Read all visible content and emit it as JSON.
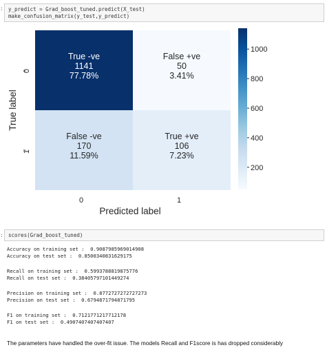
{
  "cell1": {
    "prompt": ":",
    "lines": [
      "y_predict = Grad_boost_tuned.predict(X_test)",
      "make_confusion_matrix(y_test,y_predict)"
    ]
  },
  "chart_data": {
    "type": "heatmap",
    "xlabel": "Predicted label",
    "ylabel": "True label",
    "x_ticks": [
      "0",
      "1"
    ],
    "y_ticks": [
      "0",
      "1"
    ],
    "cells": [
      {
        "row": 0,
        "col": 0,
        "label": "True -ve",
        "count": 1141,
        "count_text": "1141",
        "percent": "77.78%",
        "color": "#08306b",
        "text_color": "#ffffff"
      },
      {
        "row": 0,
        "col": 1,
        "label": "False +ve",
        "count": 50,
        "count_text": "50",
        "percent": "3.41%",
        "color": "#f6fafe",
        "text_color": "#262626"
      },
      {
        "row": 1,
        "col": 0,
        "label": "False -ve",
        "count": 170,
        "count_text": "170",
        "percent": "11.59%",
        "color": "#d3e3f3",
        "text_color": "#262626"
      },
      {
        "row": 1,
        "col": 1,
        "label": "True +ve",
        "count": 106,
        "count_text": "106",
        "percent": "7.23%",
        "color": "#e3eef9",
        "text_color": "#262626"
      }
    ],
    "colorbar": {
      "min": 50,
      "max": 1141,
      "ticks": [
        200,
        400,
        600,
        800,
        1000
      ],
      "tick_labels": [
        "200",
        "400",
        "600",
        "800",
        "1000"
      ],
      "colormap": "Blues"
    }
  },
  "cell2": {
    "prompt": ":",
    "lines": [
      "scores(Grad_boost_tuned)"
    ]
  },
  "scores": [
    [
      "Accuracy on training set :  0.9087985969014908",
      "Accuracy on test set :  0.8500340831629175"
    ],
    [
      "Recall on training set :  0.5993788819875776",
      "Recall on test set :  0.38405797101449274"
    ],
    [
      "Precision on training set :  0.8772727272727273",
      "Precision on test set :  0.6794871794871795"
    ],
    [
      "F1 on training set :  0.7121771217712178",
      "F1 on test set :  0.4907407407407407"
    ]
  ],
  "note": "The parameters have handled the over-fit issue. The models Recall and F1score is has dropped considerably"
}
